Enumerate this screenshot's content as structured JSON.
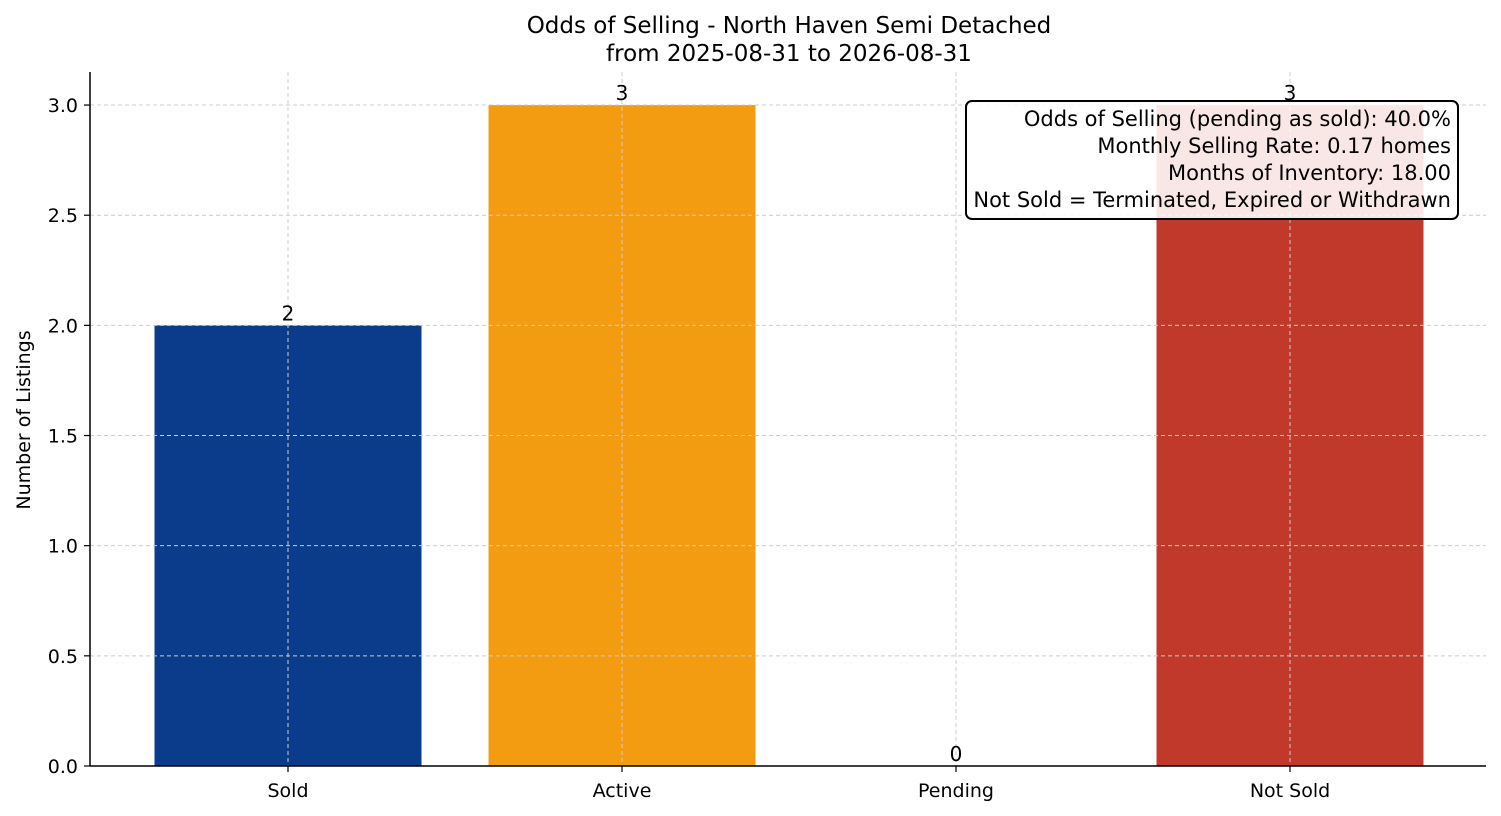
{
  "chart_data": {
    "type": "bar",
    "title": "Odds of Selling - North Haven Semi Detached",
    "subtitle": "from 2025-08-31 to 2026-08-31",
    "xlabel": "",
    "ylabel": "Number of Listings",
    "categories": [
      "Sold",
      "Active",
      "Pending",
      "Not Sold"
    ],
    "values": [
      2,
      3,
      0,
      3
    ],
    "value_labels": [
      "2",
      "3",
      "0",
      "3"
    ],
    "colors": [
      "#0b3c8c",
      "#f39c12",
      "#2e8b57",
      "#c0392b"
    ],
    "ylim": [
      0,
      3.15
    ],
    "yticks": [
      0.0,
      0.5,
      1.0,
      1.5,
      2.0,
      2.5,
      3.0
    ],
    "ytick_labels": [
      "0.0",
      "0.5",
      "1.0",
      "1.5",
      "2.0",
      "2.5",
      "3.0"
    ],
    "grid": true,
    "legend": "none",
    "annotation_box": {
      "placement": "top-right",
      "lines": [
        "Odds of Selling (pending as sold): 40.0%",
        "Monthly Selling Rate: 0.17 homes",
        "Months of Inventory: 18.00",
        "Not Sold = Terminated, Expired or Withdrawn"
      ]
    }
  }
}
